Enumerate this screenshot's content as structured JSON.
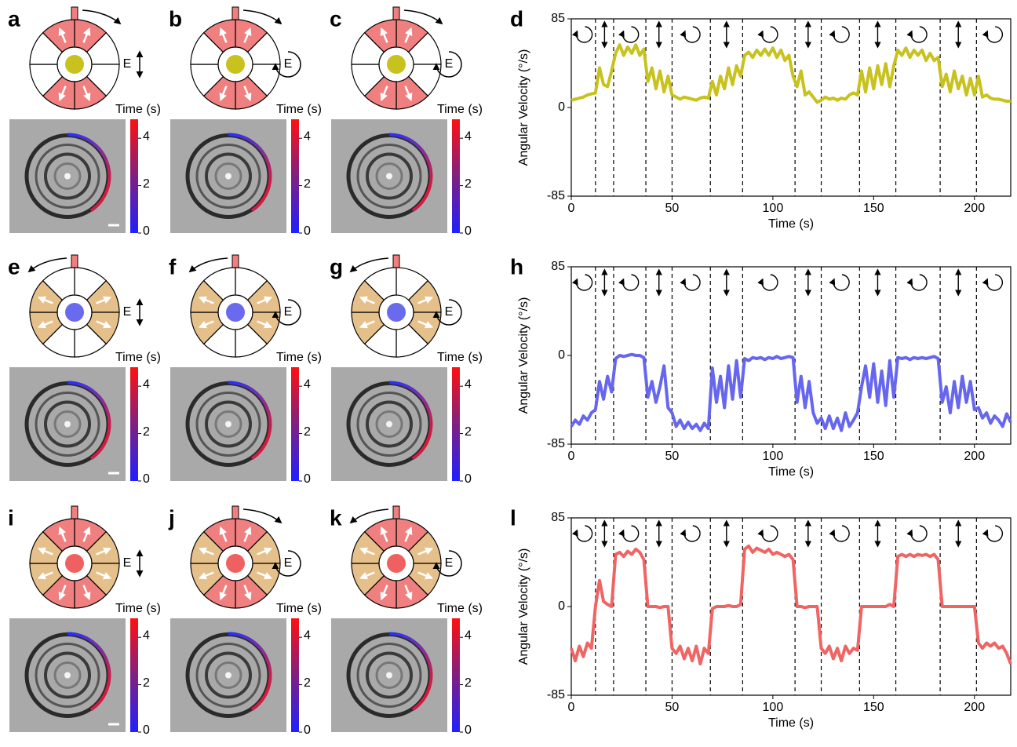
{
  "panels": [
    "a",
    "b",
    "c",
    "d",
    "e",
    "f",
    "g",
    "h",
    "i",
    "j",
    "k",
    "l"
  ],
  "schematic": {
    "field_label": "E",
    "time_label": "Time (s)"
  },
  "colorbar": {
    "lim": [
      0,
      4.8
    ],
    "ticks": [
      0,
      2,
      4
    ]
  },
  "chart_data": [
    {
      "type": "line",
      "y_label": "Angular Velocity (°/s)",
      "x_label": "Time (s)",
      "color": "#c8c21e",
      "xlim": [
        0,
        218
      ],
      "xticks": [
        0,
        50,
        100,
        150,
        200
      ],
      "ylim": [
        -85,
        85
      ],
      "yticks": [
        -85,
        0,
        85
      ],
      "vlines": [
        12,
        21,
        37,
        50,
        69,
        85,
        111,
        124,
        143,
        161,
        183,
        201
      ],
      "x": [
        0,
        2,
        4,
        6,
        8,
        10,
        12,
        14,
        16,
        18,
        20,
        22,
        24,
        26,
        28,
        30,
        32,
        34,
        36,
        38,
        40,
        42,
        44,
        46,
        48,
        50,
        52,
        54,
        56,
        58,
        60,
        62,
        64,
        66,
        68,
        70,
        72,
        74,
        76,
        78,
        80,
        82,
        84,
        86,
        88,
        90,
        92,
        94,
        96,
        98,
        100,
        102,
        104,
        106,
        108,
        110,
        112,
        114,
        116,
        118,
        120,
        122,
        124,
        126,
        128,
        130,
        132,
        134,
        136,
        138,
        140,
        142,
        144,
        146,
        148,
        150,
        152,
        154,
        156,
        158,
        160,
        162,
        164,
        166,
        168,
        170,
        172,
        174,
        176,
        178,
        180,
        182,
        184,
        186,
        188,
        190,
        192,
        194,
        196,
        198,
        200,
        202,
        204,
        206,
        208,
        210,
        212,
        214,
        216,
        218
      ],
      "values": [
        7,
        8,
        9,
        10,
        12,
        13,
        14,
        38,
        22,
        20,
        35,
        52,
        60,
        50,
        58,
        52,
        60,
        50,
        56,
        25,
        38,
        18,
        35,
        15,
        30,
        12,
        10,
        8,
        10,
        9,
        8,
        7,
        9,
        10,
        9,
        25,
        12,
        30,
        18,
        38,
        22,
        40,
        30,
        50,
        53,
        48,
        55,
        50,
        56,
        50,
        57,
        48,
        55,
        45,
        50,
        30,
        20,
        35,
        12,
        15,
        10,
        5,
        7,
        10,
        8,
        9,
        7,
        9,
        8,
        12,
        14,
        12,
        35,
        15,
        38,
        18,
        40,
        22,
        42,
        20,
        40,
        55,
        50,
        57,
        48,
        55,
        50,
        55,
        45,
        52,
        45,
        48,
        20,
        32,
        15,
        35,
        18,
        30,
        12,
        28,
        12,
        30,
        10,
        12,
        9,
        8,
        8,
        7,
        6,
        6
      ]
    },
    {
      "type": "line",
      "y_label": "Angular Velocity (°/s)",
      "x_label": "Time (s)",
      "color": "#6666ee",
      "xlim": [
        0,
        218
      ],
      "xticks": [
        0,
        50,
        100,
        150,
        200
      ],
      "ylim": [
        -85,
        85
      ],
      "yticks": [
        -85,
        0,
        85
      ],
      "vlines": [
        12,
        21,
        37,
        50,
        69,
        85,
        111,
        124,
        143,
        161,
        183,
        201
      ],
      "x": [
        0,
        2,
        4,
        6,
        8,
        10,
        12,
        14,
        16,
        18,
        20,
        22,
        24,
        26,
        28,
        30,
        32,
        34,
        36,
        38,
        40,
        42,
        44,
        46,
        48,
        50,
        52,
        54,
        56,
        58,
        60,
        62,
        64,
        66,
        68,
        70,
        72,
        74,
        76,
        78,
        80,
        82,
        84,
        86,
        88,
        90,
        92,
        94,
        96,
        98,
        100,
        102,
        104,
        106,
        108,
        110,
        112,
        114,
        116,
        118,
        120,
        122,
        124,
        126,
        128,
        130,
        132,
        134,
        136,
        138,
        140,
        142,
        144,
        146,
        148,
        150,
        152,
        154,
        156,
        158,
        160,
        162,
        164,
        166,
        168,
        170,
        172,
        174,
        176,
        178,
        180,
        182,
        184,
        186,
        188,
        190,
        192,
        194,
        196,
        198,
        200,
        202,
        204,
        206,
        208,
        210,
        212,
        214,
        216,
        218
      ],
      "values": [
        -68,
        -62,
        -66,
        -58,
        -62,
        -55,
        -52,
        -25,
        -42,
        -20,
        -35,
        -3,
        0,
        -1,
        0,
        1,
        0,
        0,
        -2,
        -40,
        -25,
        -45,
        -30,
        -10,
        -50,
        -55,
        -68,
        -62,
        -70,
        -64,
        -70,
        -66,
        -72,
        -65,
        -70,
        -12,
        -45,
        -20,
        -50,
        -10,
        -42,
        -5,
        -40,
        -3,
        -5,
        -2,
        -3,
        -2,
        -4,
        -2,
        -3,
        -1,
        -3,
        -2,
        -1,
        -2,
        -45,
        -20,
        -50,
        -25,
        -55,
        -65,
        -60,
        -70,
        -58,
        -70,
        -60,
        -72,
        -55,
        -68,
        -62,
        -55,
        -30,
        -10,
        -40,
        -8,
        -45,
        -15,
        -48,
        -5,
        -40,
        -2,
        -3,
        -2,
        -4,
        -2,
        -3,
        -2,
        -3,
        -2,
        -1,
        -3,
        -45,
        -30,
        -55,
        -25,
        -50,
        -20,
        -45,
        -25,
        -52,
        -50,
        -60,
        -55,
        -65,
        -58,
        -62,
        -68,
        -56,
        -64
      ]
    },
    {
      "type": "line",
      "y_label": "Angular Velocity (°/s)",
      "x_label": "Time (s)",
      "color": "#f06464",
      "xlim": [
        0,
        218
      ],
      "xticks": [
        0,
        50,
        100,
        150,
        200
      ],
      "ylim": [
        -85,
        85
      ],
      "yticks": [
        -85,
        0,
        85
      ],
      "vlines": [
        12,
        21,
        37,
        50,
        69,
        85,
        111,
        124,
        143,
        161,
        183,
        201
      ],
      "x": [
        0,
        2,
        4,
        6,
        8,
        10,
        12,
        14,
        16,
        18,
        20,
        22,
        24,
        26,
        28,
        30,
        32,
        34,
        36,
        38,
        40,
        42,
        44,
        46,
        48,
        50,
        52,
        54,
        56,
        58,
        60,
        62,
        64,
        66,
        68,
        70,
        72,
        74,
        76,
        78,
        80,
        82,
        84,
        86,
        88,
        90,
        92,
        94,
        96,
        98,
        100,
        102,
        104,
        106,
        108,
        110,
        112,
        114,
        116,
        118,
        120,
        122,
        124,
        126,
        128,
        130,
        132,
        134,
        136,
        138,
        140,
        142,
        144,
        146,
        148,
        150,
        152,
        154,
        156,
        158,
        160,
        162,
        164,
        166,
        168,
        170,
        172,
        174,
        176,
        178,
        180,
        182,
        184,
        186,
        188,
        190,
        192,
        194,
        196,
        198,
        200,
        202,
        204,
        206,
        208,
        210,
        212,
        214,
        216,
        218
      ],
      "values": [
        -40,
        -52,
        -38,
        -48,
        -35,
        -40,
        0,
        25,
        5,
        2,
        0,
        50,
        52,
        48,
        53,
        50,
        55,
        52,
        45,
        0,
        0,
        0,
        -1,
        0,
        0,
        -40,
        -45,
        -38,
        -50,
        -40,
        -52,
        -38,
        -55,
        -40,
        -45,
        -2,
        0,
        0,
        0,
        1,
        0,
        0,
        2,
        55,
        58,
        52,
        56,
        54,
        52,
        55,
        50,
        52,
        50,
        48,
        50,
        45,
        0,
        0,
        -1,
        0,
        0,
        0,
        -40,
        -45,
        -38,
        -50,
        -40,
        -52,
        -38,
        -45,
        -40,
        -42,
        0,
        0,
        0,
        0,
        0,
        0,
        0,
        2,
        0,
        48,
        50,
        48,
        50,
        48,
        50,
        49,
        50,
        48,
        50,
        45,
        0,
        0,
        0,
        0,
        0,
        0,
        0,
        0,
        0,
        -35,
        -40,
        -35,
        -38,
        -35,
        -40,
        -38,
        -45,
        -55
      ]
    }
  ]
}
